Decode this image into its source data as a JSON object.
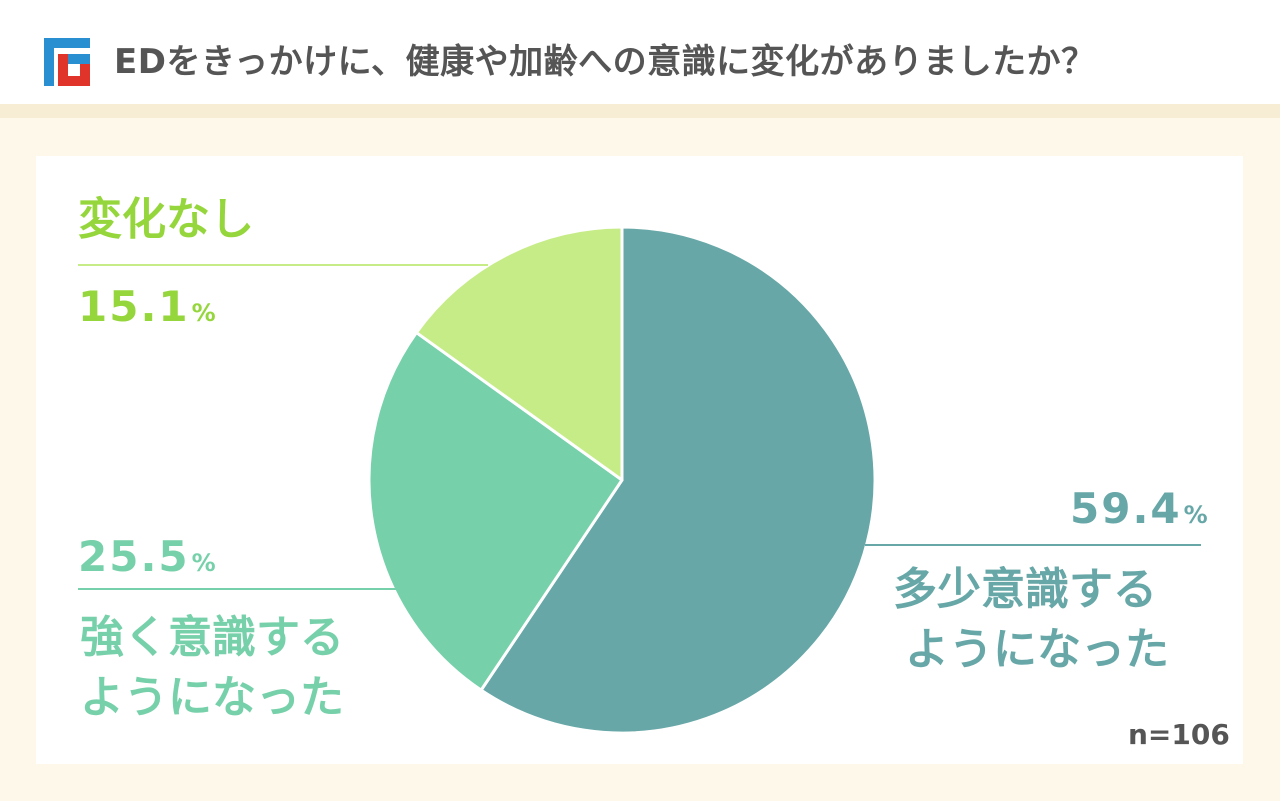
{
  "header": {
    "title": "EDをきっかけに、健康や加齢への意識に変化がありましたか？",
    "logo_icon": "brand-logo-icon"
  },
  "colors": {
    "much_conscious": "#67a7a7",
    "strongly_conscious": "#76d0a9",
    "no_change": "#c6ec87",
    "no_change_text": "#95d63c",
    "background": "#fdf8ea",
    "header_rule": "#f6edd4",
    "title_text": "#555555",
    "logo_blue": "#2a8fd0",
    "logo_red": "#e0342b"
  },
  "chart_data": {
    "type": "pie",
    "title": "EDをきっかけに、健康や加齢への意識に変化がありましたか？",
    "sample_size": "n=106",
    "slices": [
      {
        "label": "多少意識するようになった",
        "lines": [
          "多少意識する",
          "ようになった"
        ],
        "value": 59.4,
        "value_text": "59.4",
        "unit": "%",
        "color": "#67a7a7",
        "text_color": "#67a7a7",
        "line_color": "#67a7a7"
      },
      {
        "label": "強く意識するようになった",
        "lines": [
          "強く意識する",
          "ようになった"
        ],
        "value": 25.5,
        "value_text": "25.5",
        "unit": "%",
        "color": "#76d0a9",
        "text_color": "#76d0a9",
        "line_color": "#76d0a9"
      },
      {
        "label": "変化なし",
        "lines": [
          "変化なし"
        ],
        "value": 15.1,
        "value_text": "15.1",
        "unit": "%",
        "color": "#c6ec87",
        "text_color": "#95d63c",
        "line_color": "#c6ec87"
      }
    ],
    "start_angle": "top",
    "direction": "clockwise"
  }
}
